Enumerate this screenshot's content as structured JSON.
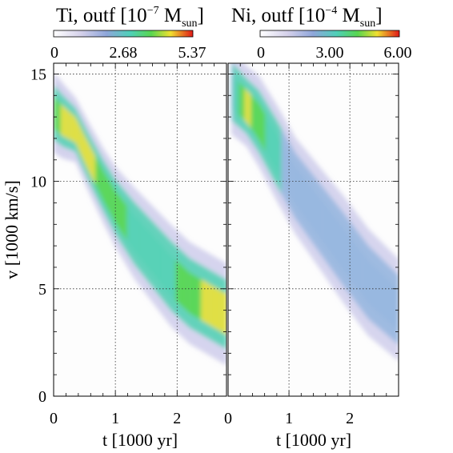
{
  "chart_data": [
    {
      "type": "heatmap",
      "panel": "left",
      "title": "Ti, outf [10^-7 M_sun]",
      "title_parts": {
        "element": "Ti, outf [10",
        "exp": "−7",
        "unit": " M",
        "sub": "sun",
        "close": "]"
      },
      "colorbar": {
        "ticks": [
          "0",
          "2.68",
          "5.37"
        ],
        "range": [
          0,
          5.37
        ]
      },
      "xlabel": "t [1000 yr]",
      "ylabel": "v [1000 km/s]",
      "xlim": [
        0,
        2.8
      ],
      "ylim": [
        0,
        15.5
      ],
      "xticks": [
        "0",
        "1",
        "2"
      ],
      "yticks": [
        "0",
        "5",
        "10",
        "15"
      ],
      "grid": true,
      "band": [
        [
          0.0,
          13.2,
          1.5,
          4.2
        ],
        [
          0.15,
          12.8,
          1.4,
          4.6
        ],
        [
          0.35,
          12.4,
          1.2,
          4.6
        ],
        [
          0.55,
          11.2,
          1.3,
          4.7
        ],
        [
          0.8,
          9.8,
          1.4,
          4.3
        ],
        [
          1.0,
          8.8,
          1.5,
          3.9
        ],
        [
          1.3,
          7.6,
          1.7,
          3.3
        ],
        [
          1.6,
          6.6,
          1.8,
          3.0
        ],
        [
          1.9,
          5.6,
          1.9,
          3.3
        ],
        [
          2.2,
          4.8,
          1.9,
          4.0
        ],
        [
          2.5,
          4.3,
          1.9,
          4.8
        ],
        [
          2.8,
          3.8,
          1.9,
          5.3
        ]
      ]
    },
    {
      "type": "heatmap",
      "panel": "right",
      "title": "Ni, outf [10^-4 M_sun]",
      "title_parts": {
        "element": "Ni, outf [10",
        "exp": "−4",
        "unit": " M",
        "sub": "sun",
        "close": "]"
      },
      "colorbar": {
        "ticks": [
          "0",
          "3.00",
          "6.00"
        ],
        "range": [
          0,
          6.0
        ]
      },
      "xlabel": "t [1000 yr]",
      "xlim": [
        0,
        2.8
      ],
      "ylim": [
        0,
        15.5
      ],
      "xticks": [
        "0",
        "1",
        "2"
      ],
      "grid": true,
      "band": [
        [
          0.05,
          14.2,
          1.6,
          2.0
        ],
        [
          0.3,
          13.5,
          1.5,
          4.8
        ],
        [
          0.5,
          12.8,
          1.7,
          4.0
        ],
        [
          0.8,
          11.3,
          1.8,
          2.6
        ],
        [
          1.1,
          9.8,
          1.8,
          2.2
        ],
        [
          1.5,
          8.3,
          1.9,
          2.1
        ],
        [
          1.9,
          6.8,
          2.0,
          2.0
        ],
        [
          2.3,
          5.3,
          2.0,
          1.9
        ],
        [
          2.8,
          4.0,
          1.9,
          1.8
        ]
      ]
    }
  ]
}
